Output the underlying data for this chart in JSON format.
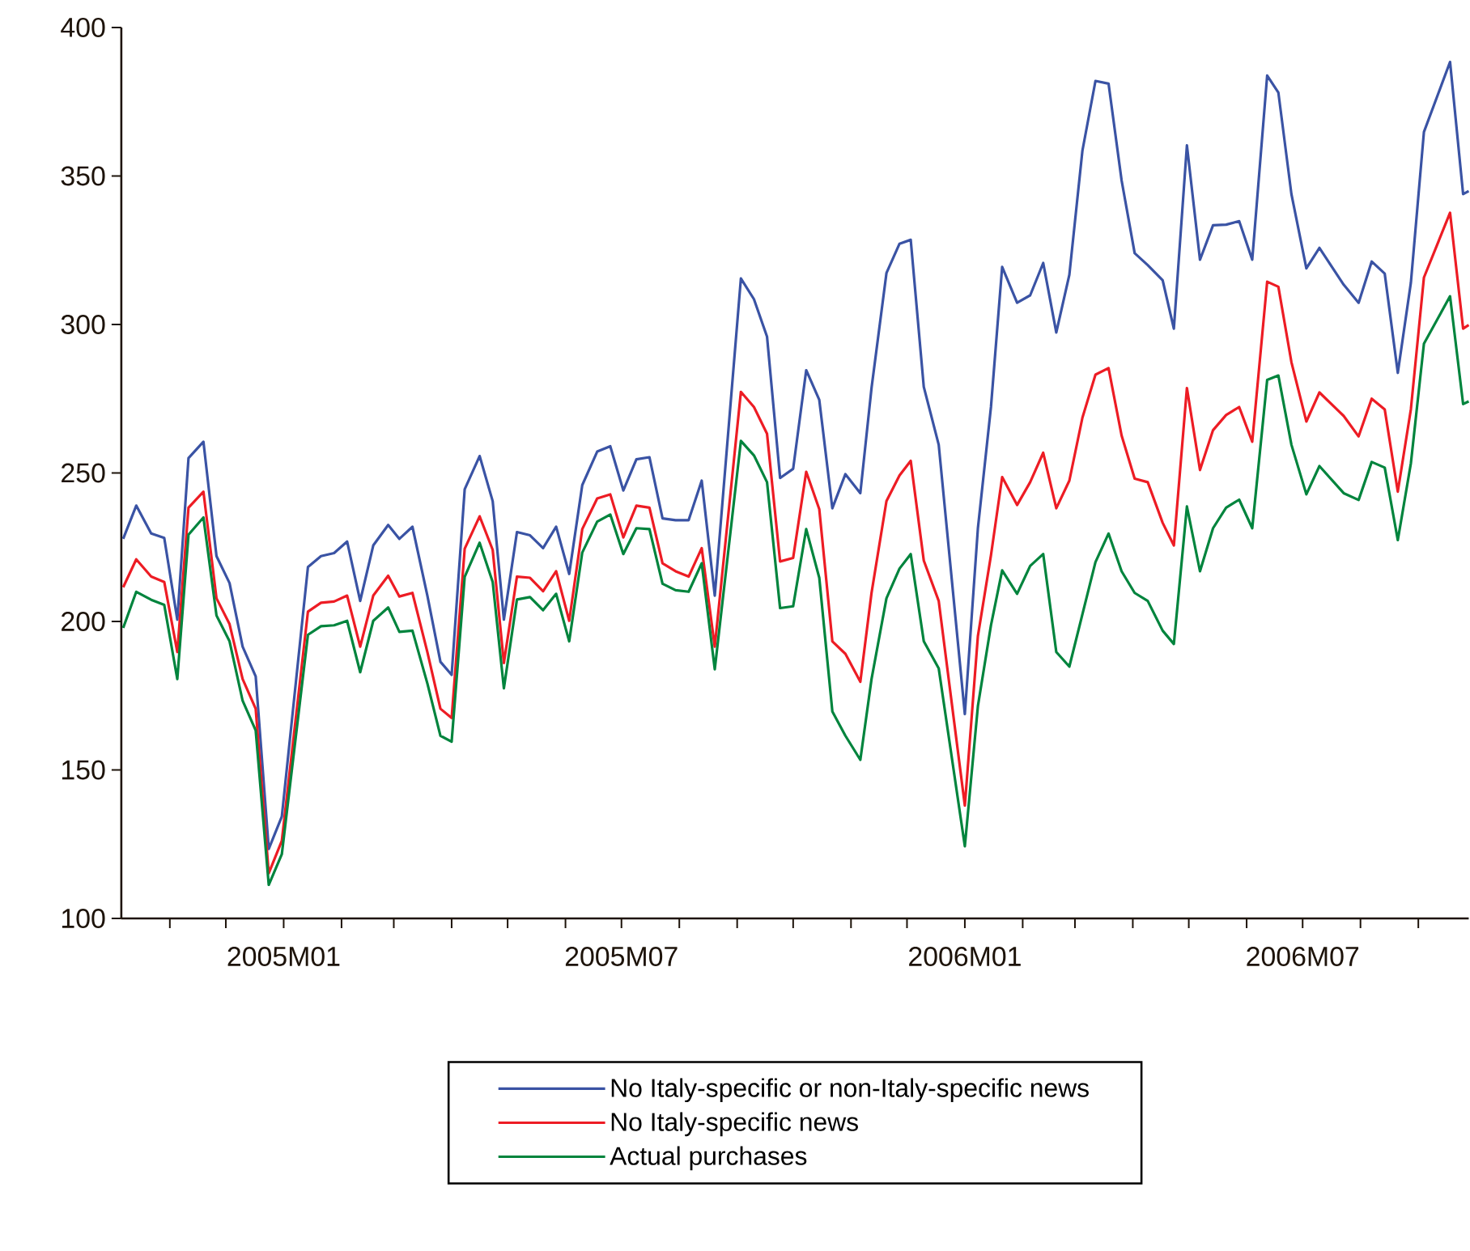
{
  "chart_data": {
    "type": "line",
    "marker": "none",
    "line_style": "solid",
    "legend": "bottom",
    "x": [
      "2004-10-07",
      "2004-10-14",
      "2004-10-22",
      "2004-10-29",
      "2004-11-05",
      "2004-11-11",
      "2004-11-19",
      "2004-11-26",
      "2004-12-03",
      "2004-12-10",
      "2004-12-17",
      "2004-12-24",
      "2004-12-31",
      "2005-01-14",
      "2005-01-21",
      "2005-01-28",
      "2005-02-04",
      "2005-02-11",
      "2005-02-18",
      "2005-02-26",
      "2005-03-04",
      "2005-03-11",
      "2005-03-19",
      "2005-03-26",
      "2005-04-01",
      "2005-04-08",
      "2005-04-16",
      "2005-04-23",
      "2005-04-29",
      "2005-05-06",
      "2005-05-13",
      "2005-05-20",
      "2005-05-27",
      "2005-06-03",
      "2005-06-10",
      "2005-06-18",
      "2005-06-25",
      "2005-07-02",
      "2005-07-09",
      "2005-07-16",
      "2005-07-23",
      "2005-07-30",
      "2005-08-06",
      "2005-08-13",
      "2005-08-20",
      "2005-09-03",
      "2005-09-10",
      "2005-09-17",
      "2005-09-24",
      "2005-10-01",
      "2005-10-08",
      "2005-10-15",
      "2005-10-22",
      "2005-10-29",
      "2005-11-06",
      "2005-11-12",
      "2005-11-20",
      "2005-11-27",
      "2005-12-03",
      "2005-12-10",
      "2005-12-18",
      "2006-01-01",
      "2006-01-08",
      "2006-01-15",
      "2006-01-21",
      "2006-01-29",
      "2006-02-05",
      "2006-02-12",
      "2006-02-19",
      "2006-02-26",
      "2006-03-05",
      "2006-03-12",
      "2006-03-19",
      "2006-03-26",
      "2006-04-02",
      "2006-04-09",
      "2006-04-17",
      "2006-04-23",
      "2006-04-30",
      "2006-05-07",
      "2006-05-14",
      "2006-05-21",
      "2006-05-28",
      "2006-06-04",
      "2006-06-12",
      "2006-06-18",
      "2006-06-25",
      "2006-07-03",
      "2006-07-10",
      "2006-07-23",
      "2006-07-31",
      "2006-08-07",
      "2006-08-14",
      "2006-08-21",
      "2006-08-28",
      "2006-09-04",
      "2006-09-18",
      "2006-09-25",
      "2006-09-28"
    ],
    "xlim": [
      "2004-10-06",
      "2006-09-28"
    ],
    "xticks": [
      {
        "value": "2004-11-01",
        "label": null
      },
      {
        "value": "2004-12-01",
        "label": null
      },
      {
        "value": "2005-01-01",
        "label": "2005M01"
      },
      {
        "value": "2005-02-01",
        "label": null
      },
      {
        "value": "2005-03-01",
        "label": null
      },
      {
        "value": "2005-04-01",
        "label": null
      },
      {
        "value": "2005-05-01",
        "label": null
      },
      {
        "value": "2005-06-01",
        "label": null
      },
      {
        "value": "2005-07-01",
        "label": "2005M07"
      },
      {
        "value": "2005-08-01",
        "label": null
      },
      {
        "value": "2005-09-01",
        "label": null
      },
      {
        "value": "2005-10-01",
        "label": null
      },
      {
        "value": "2005-11-01",
        "label": null
      },
      {
        "value": "2005-12-01",
        "label": null
      },
      {
        "value": "2006-01-01",
        "label": "2006M01"
      },
      {
        "value": "2006-02-01",
        "label": null
      },
      {
        "value": "2006-03-01",
        "label": null
      },
      {
        "value": "2006-04-01",
        "label": null
      },
      {
        "value": "2006-05-01",
        "label": null
      },
      {
        "value": "2006-06-01",
        "label": null
      },
      {
        "value": "2006-07-01",
        "label": "2006M07"
      },
      {
        "value": "2006-08-01",
        "label": null
      },
      {
        "value": "2006-09-01",
        "label": null
      }
    ],
    "ylim": [
      100,
      400
    ],
    "yticks": [
      100,
      150,
      200,
      250,
      300,
      350,
      400
    ],
    "series": [
      {
        "name": "No Italy-specific or non-Italy-specific news",
        "color": "#3a53a4",
        "values": [
          227.8,
          239,
          229.6,
          228.1,
          200.6,
          255,
          260.5,
          222,
          212.9,
          191.5,
          181.5,
          123.4,
          134.3,
          218.3,
          222,
          223,
          226.9,
          206.9,
          225.6,
          232.5,
          227.8,
          231.9,
          208.7,
          186.4,
          182,
          244.5,
          255.7,
          240.5,
          200.6,
          230.1,
          229,
          224.7,
          231.9,
          216,
          245.9,
          257.2,
          259,
          244.1,
          254.6,
          255.3,
          234.7,
          234.1,
          234.1,
          247.4,
          208.7,
          315.5,
          308.5,
          295.9,
          248.3,
          251.4,
          284.6,
          274.6,
          238.1,
          249.6,
          243.2,
          278.6,
          317.3,
          327.2,
          328.5,
          279,
          259.5,
          168.8,
          231.4,
          272.2,
          319.4,
          307.3,
          309.8,
          320.7,
          297.3,
          316.7,
          358.5,
          382,
          381.1,
          348.5,
          324,
          320,
          314.9,
          298.6,
          360.3,
          321.8,
          333.4,
          333.6,
          334.8,
          321.8,
          383.8,
          378.1,
          343.9,
          318.9,
          325.8,
          313.4,
          307.3,
          321.2,
          317.1,
          283.7,
          314,
          364.8,
          388.4,
          343.9,
          344.9
        ]
      },
      {
        "name": "No Italy-specific news",
        "color": "#ed1c24",
        "values": [
          211.5,
          220.9,
          215.1,
          213.3,
          189.7,
          238.3,
          243.7,
          207.8,
          199.1,
          180.6,
          170.6,
          115.2,
          126.1,
          203.3,
          206.3,
          206.7,
          208.7,
          191.5,
          208.7,
          215.4,
          208.4,
          209.6,
          189.7,
          170.6,
          167.5,
          224.5,
          235.4,
          224.1,
          186,
          215.1,
          214.7,
          210.2,
          216.9,
          200.2,
          231.1,
          241.4,
          242.8,
          228.3,
          239,
          238.3,
          219.6,
          216.9,
          215.1,
          224.7,
          191.5,
          277.3,
          272.2,
          263.2,
          220.2,
          221.4,
          250.4,
          237.8,
          193.3,
          189.1,
          179.7,
          209.6,
          240.5,
          249.2,
          254.1,
          220.5,
          206.9,
          138,
          195.1,
          222.3,
          248.6,
          239.2,
          246.9,
          256.8,
          238.1,
          247.4,
          268.6,
          283.1,
          285.3,
          262.6,
          248.1,
          246.9,
          233.2,
          225.6,
          278.6,
          251,
          264.4,
          269.5,
          272.2,
          260.5,
          314.4,
          312.7,
          287.3,
          267.3,
          277.1,
          269.2,
          262.3,
          275,
          271.4,
          243.7,
          271.4,
          315.8,
          337.6,
          298.6,
          299.8
        ]
      },
      {
        "name": "Actual purchases",
        "color": "#00843d",
        "values": [
          197.8,
          210,
          207.3,
          205.6,
          180.6,
          229.2,
          235,
          202,
          193.3,
          173.3,
          163.3,
          111.3,
          121.6,
          195.5,
          198.4,
          198.7,
          200.2,
          182.9,
          200.2,
          204.7,
          196.5,
          196.9,
          179.1,
          161.5,
          159.5,
          215,
          226.5,
          213.3,
          177.5,
          207.4,
          208.2,
          203.8,
          209.3,
          193.3,
          223.2,
          233.6,
          236,
          222.7,
          231.4,
          231.1,
          212.7,
          210.5,
          210,
          219.6,
          183.9,
          260.8,
          255.9,
          246.9,
          204.5,
          205.1,
          231.1,
          214.7,
          169.7,
          161.5,
          153.4,
          180.6,
          207.8,
          217.8,
          222.7,
          193.3,
          184.2,
          124.3,
          171.5,
          198.7,
          217.2,
          209.3,
          218.7,
          222.7,
          189.7,
          184.8,
          202.4,
          220,
          229.6,
          216.9,
          209.6,
          206.9,
          196.9,
          192.4,
          238.7,
          216.9,
          231.4,
          238.3,
          241,
          231.4,
          281.3,
          282.8,
          259.5,
          242.8,
          252.3,
          243.2,
          240.9,
          253.7,
          251.8,
          227.4,
          253.2,
          293.5,
          309.5,
          273.2,
          274.1
        ]
      }
    ]
  }
}
